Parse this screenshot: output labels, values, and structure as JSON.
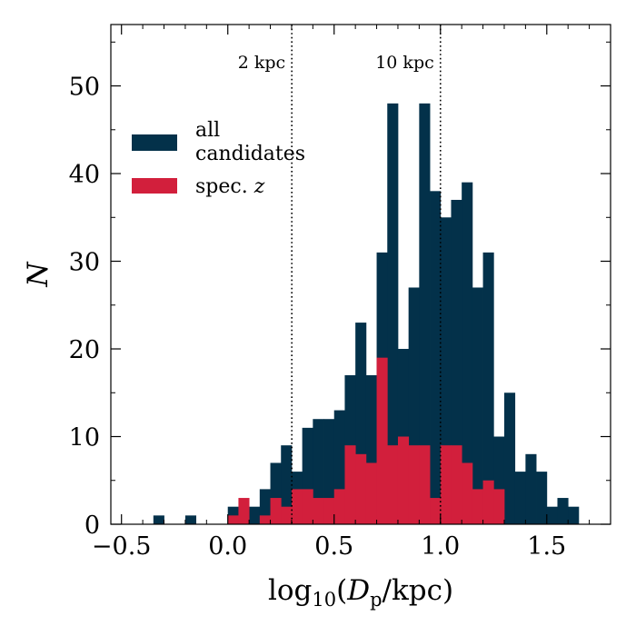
{
  "chart_data": {
    "type": "bar",
    "title": "",
    "xlabel": {
      "main": "log",
      "sub": "10",
      "rest_open": "(",
      "var": "D",
      "var_sub": "p",
      "rest_close": "/kpc)"
    },
    "ylabel": "N",
    "xlim": [
      -0.55,
      1.8
    ],
    "ylim": [
      0,
      57
    ],
    "bin_start": -0.35,
    "bin_width": 0.05,
    "x_ticks": [
      -0.5,
      0.0,
      0.5,
      1.0,
      1.5
    ],
    "x_tick_labels": [
      "−0.5",
      "0.0",
      "0.5",
      "1.0",
      "1.5"
    ],
    "y_ticks": [
      0,
      10,
      20,
      30,
      40,
      50
    ],
    "y_tick_labels": [
      "0",
      "10",
      "20",
      "30",
      "40",
      "50"
    ],
    "series": [
      {
        "name": "all candidates",
        "label_lines": [
          "all",
          "candidates"
        ],
        "color": "#03314A",
        "values": [
          1,
          0,
          0,
          1,
          0,
          0,
          0,
          2,
          1,
          2,
          4,
          7,
          9,
          6,
          11,
          12,
          12,
          13,
          17,
          23,
          17,
          31,
          48,
          20,
          27,
          48,
          38,
          35,
          37,
          39,
          27,
          31,
          10,
          15,
          6,
          8,
          6,
          2,
          3,
          2
        ]
      },
      {
        "name": "spec. z",
        "label_lines": [
          "spec. ",
          "z"
        ],
        "color": "#D21F3C",
        "values": [
          0,
          0,
          0,
          0,
          0,
          0,
          0,
          1,
          3,
          0,
          1,
          3,
          2,
          4,
          4,
          3,
          3,
          4,
          9,
          8,
          7,
          19,
          9,
          10,
          9,
          9,
          3,
          9,
          9,
          7,
          4,
          5,
          4,
          0,
          0,
          0,
          0,
          0,
          0,
          0
        ]
      }
    ],
    "vlines": [
      {
        "x": 0.301,
        "label": "2 kpc"
      },
      {
        "x": 1.0,
        "label": "10 kpc"
      }
    ],
    "legend_position": "upper-left",
    "grid": false
  }
}
